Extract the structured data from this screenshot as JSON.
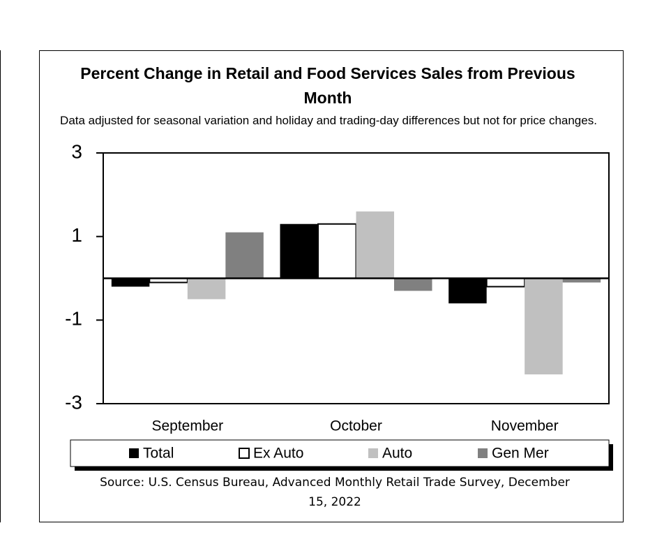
{
  "chart_data": {
    "type": "bar",
    "title": "Percent Change in Retail and Food Services Sales from Previous Month",
    "subtitle": "Data adjusted for seasonal variation and holiday and trading-day differences but not for price changes.",
    "source": "Source: U.S. Census Bureau, Advanced Monthly Retail Trade Survey, December 15, 2022",
    "categories": [
      "September",
      "October",
      "November"
    ],
    "series": [
      {
        "name": "Total",
        "color": "#000000",
        "values": [
          -0.2,
          1.3,
          -0.6
        ]
      },
      {
        "name": "Ex Auto",
        "color": "#ffffff",
        "values": [
          -0.1,
          1.3,
          -0.2
        ]
      },
      {
        "name": "Auto",
        "color": "#c0c0c0",
        "values": [
          -0.5,
          1.6,
          -2.3
        ]
      },
      {
        "name": "Gen Mer",
        "color": "#808080",
        "values": [
          1.1,
          -0.3,
          -0.1
        ]
      }
    ],
    "ylim": [
      -3,
      3
    ],
    "yticks": [
      -3,
      -1,
      1,
      3
    ],
    "grid": false
  }
}
